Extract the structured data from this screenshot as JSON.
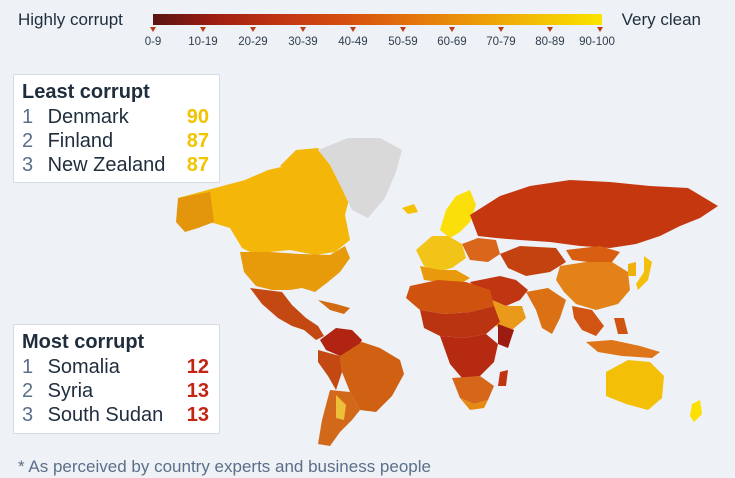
{
  "legend": {
    "left_label": "Highly corrupt",
    "right_label": "Very clean",
    "ticks": [
      "0-9",
      "10-19",
      "20-29",
      "30-39",
      "40-49",
      "50-59",
      "60-69",
      "70-79",
      "80-89",
      "90-100"
    ]
  },
  "least_corrupt": {
    "title": "Least corrupt",
    "items": [
      {
        "rank": "1",
        "country": "Denmark",
        "score": "90"
      },
      {
        "rank": "2",
        "country": "Finland",
        "score": "87"
      },
      {
        "rank": "3",
        "country": "New Zealand",
        "score": "87"
      }
    ]
  },
  "most_corrupt": {
    "title": "Most corrupt",
    "items": [
      {
        "rank": "1",
        "country": "Somalia",
        "score": "12"
      },
      {
        "rank": "2",
        "country": "Syria",
        "score": "13"
      },
      {
        "rank": "3",
        "country": "South Sudan",
        "score": "13"
      }
    ]
  },
  "footnote": "* As perceived by country experts and business people",
  "colors": {
    "scale_low": "#5a1412",
    "scale_high": "#fae400",
    "no_data": "#d9d9d9",
    "score_clean": "#f2c300",
    "score_corrupt": "#c32414"
  }
}
